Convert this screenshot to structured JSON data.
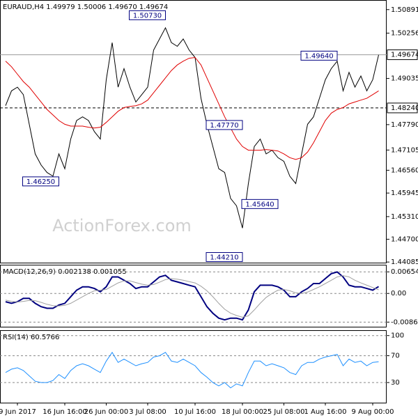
{
  "chart_data": [
    {
      "type": "line",
      "title": "EURAUD,H4  1.49979 1.50006 1.49670 1.49674",
      "watermark": "ActionForex.com",
      "grid": false,
      "ylim": [
        1.4405,
        1.5115
      ],
      "yticks": [
        1.50891,
        1.50256,
        1.49035,
        {
          "value": 1.4779,
          "label": "1.47790"
        },
        1.47105,
        {
          "value": 1.4656,
          "label": "1.46560"
        },
        1.45945,
        {
          "value": 1.4531,
          "label": "1.45310"
        },
        {
          "value": 1.447,
          "label": "1.44700"
        },
        1.44085
      ],
      "markers": [
        {
          "value": 1.49674,
          "style": "solid"
        },
        {
          "value": 1.4824,
          "label": "1.48240",
          "style": "dashed"
        }
      ],
      "annotations": [
        {
          "value": 1.5073,
          "label": "1.50730"
        },
        {
          "value": 1.4964,
          "label": "1.49640"
        },
        {
          "value": 1.4777,
          "label": "1.47770"
        },
        {
          "value": 1.4625,
          "label": "1.46250"
        },
        {
          "value": 1.4564,
          "label": "1.45640"
        },
        {
          "value": 1.4421,
          "label": "1.44210"
        }
      ],
      "series": [
        {
          "color": "#000000",
          "values": [
            1.483,
            1.487,
            1.488,
            1.486,
            1.478,
            1.47,
            1.467,
            1.465,
            1.464,
            1.47,
            1.466,
            1.474,
            1.479,
            1.48,
            1.479,
            1.476,
            1.474,
            1.49,
            1.5,
            1.488,
            1.493,
            1.488,
            1.484,
            1.486,
            1.488,
            1.498,
            1.501,
            1.504,
            1.5,
            1.499,
            1.501,
            1.498,
            1.496,
            1.485,
            1.478,
            1.472,
            1.466,
            1.465,
            1.458,
            1.456,
            1.45,
            1.462,
            1.472,
            1.474,
            1.47,
            1.471,
            1.469,
            1.468,
            1.464,
            1.462,
            1.47,
            1.478,
            1.48,
            1.485,
            1.49,
            1.493,
            1.495,
            1.487,
            1.492,
            1.488,
            1.491,
            1.487,
            1.49,
            1.4967
          ]
        },
        {
          "color": "#e00000",
          "values": [
            1.495,
            1.4935,
            1.4915,
            1.4895,
            1.488,
            1.486,
            1.484,
            1.482,
            1.4805,
            1.479,
            1.478,
            1.4775,
            1.4775,
            1.4775,
            1.4772,
            1.477,
            1.4772,
            1.4785,
            1.48,
            1.4815,
            1.4825,
            1.4828,
            1.483,
            1.4835,
            1.4845,
            1.4865,
            1.4885,
            1.4905,
            1.4925,
            1.494,
            1.495,
            1.4958,
            1.496,
            1.494,
            1.4905,
            1.487,
            1.4835,
            1.48,
            1.477,
            1.474,
            1.472,
            1.471,
            1.471,
            1.471,
            1.4712,
            1.471,
            1.4708,
            1.47,
            1.469,
            1.4685,
            1.469,
            1.4705,
            1.473,
            1.476,
            1.479,
            1.481,
            1.482,
            1.4825,
            1.4835,
            1.484,
            1.4845,
            1.485,
            1.486,
            1.487
          ]
        }
      ]
    },
    {
      "type": "line",
      "title": "MACD(12,26,9) 0.002138 0.001055",
      "grid": true,
      "ylim": [
        -0.0103,
        0.0087
      ],
      "yticks": [
        0.006542,
        {
          "value": 0,
          "label": "0.00"
        },
        -0.008684
      ],
      "series": [
        {
          "color": "#000080",
          "width": 2,
          "values": [
            -0.0025,
            -0.003,
            -0.0025,
            -0.0015,
            -0.0015,
            -0.003,
            -0.004,
            -0.0045,
            -0.0045,
            -0.0035,
            -0.003,
            -0.001,
            0.001,
            0.002,
            0.002,
            0.0015,
            0.0005,
            0.002,
            0.005,
            0.005,
            0.004,
            0.003,
            0.0015,
            0.002,
            0.002,
            0.0035,
            0.005,
            0.0055,
            0.004,
            0.0035,
            0.003,
            0.0025,
            0.002,
            -0.001,
            -0.004,
            -0.006,
            -0.0075,
            -0.008,
            -0.0075,
            -0.0075,
            -0.008,
            -0.005,
            0.0005,
            0.0025,
            0.0025,
            0.0025,
            0.002,
            0.001,
            -0.001,
            -0.001,
            0.0005,
            0.0015,
            0.003,
            0.003,
            0.0045,
            0.006,
            0.0065,
            0.005,
            0.0025,
            0.002,
            0.002,
            0.0015,
            0.001,
            0.0021
          ]
        },
        {
          "color": "#a0a0a0",
          "width": 1,
          "values": [
            -0.002,
            -0.0024,
            -0.0026,
            -0.0024,
            -0.0021,
            -0.0022,
            -0.0027,
            -0.0033,
            -0.0037,
            -0.0038,
            -0.0036,
            -0.003,
            -0.002,
            -0.001,
            0,
            0.0008,
            0.001,
            0.0012,
            0.0022,
            0.0032,
            0.0038,
            0.0038,
            0.0033,
            0.0028,
            0.0025,
            0.0027,
            0.0034,
            0.0042,
            0.0045,
            0.0043,
            0.004,
            0.0036,
            0.0032,
            0.0022,
            0.0008,
            -0.001,
            -0.003,
            -0.0048,
            -0.006,
            -0.0067,
            -0.0072,
            -0.0068,
            -0.005,
            -0.003,
            -0.0012,
            0,
            0.001,
            0.0012,
            0.0008,
            0.0002,
            0,
            0.0004,
            0.0012,
            0.002,
            0.003,
            0.004,
            0.005,
            0.0054,
            0.005,
            0.004,
            0.0032,
            0.0025,
            0.0018,
            0.0011
          ]
        }
      ]
    },
    {
      "type": "line",
      "title": "RSI(14) 60.5766",
      "grid": true,
      "ylim": [
        0,
        108
      ],
      "yticks": [
        100,
        70,
        30
      ],
      "categories": [
        null,
        null,
        "9 Jun 2017",
        null,
        null,
        null,
        null,
        null,
        null,
        null,
        "16 Jun 16:00",
        null,
        null,
        null,
        null,
        null,
        null,
        "26 Jun 00:00",
        null,
        null,
        null,
        null,
        null,
        null,
        "3 Jul 08:00",
        null,
        null,
        null,
        null,
        null,
        null,
        null,
        "10 Jul 16:00",
        null,
        null,
        null,
        null,
        null,
        null,
        null,
        "18 Jul 00:00",
        null,
        null,
        null,
        null,
        null,
        null,
        "25 Jul 08:00",
        null,
        null,
        null,
        null,
        null,
        null,
        "1 Aug 16:00",
        null,
        null,
        null,
        null,
        null,
        null,
        null,
        "9 Aug 00:00",
        null
      ],
      "series": [
        {
          "color": "#1e90ff",
          "width": 1,
          "values": [
            45,
            50,
            52,
            48,
            40,
            32,
            30,
            30,
            33,
            42,
            36,
            48,
            55,
            58,
            55,
            50,
            45,
            62,
            75,
            60,
            65,
            60,
            55,
            58,
            60,
            68,
            70,
            75,
            62,
            60,
            65,
            60,
            55,
            45,
            38,
            30,
            25,
            30,
            22,
            28,
            25,
            45,
            62,
            62,
            55,
            58,
            55,
            52,
            45,
            42,
            55,
            60,
            60,
            65,
            68,
            70,
            72,
            55,
            65,
            60,
            62,
            55,
            60,
            61
          ]
        }
      ]
    }
  ]
}
